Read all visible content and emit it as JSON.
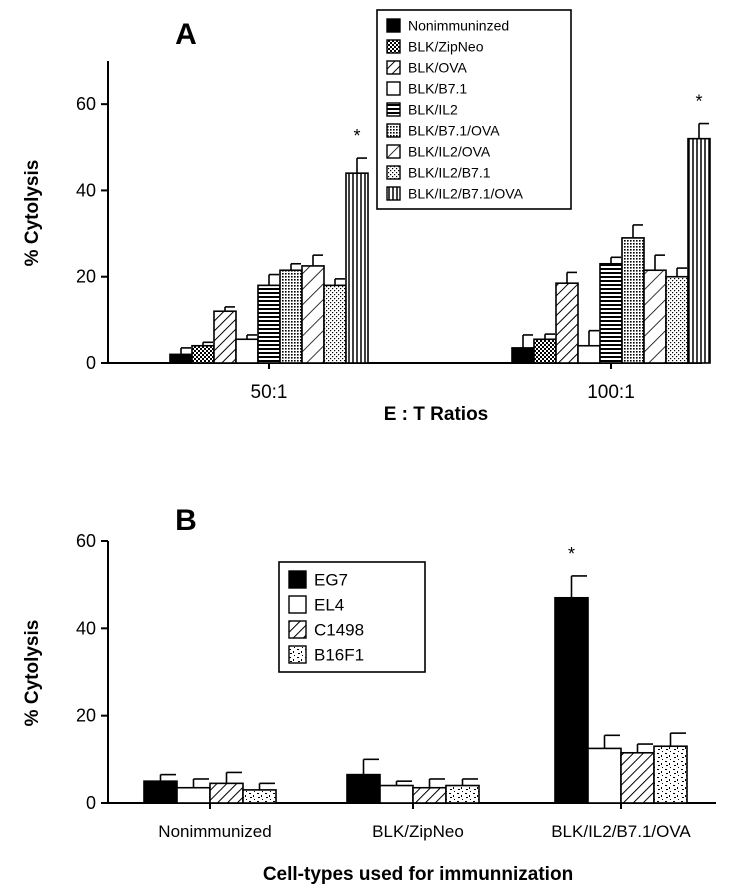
{
  "colors": {
    "ink": "#000000",
    "paper": "#ffffff"
  },
  "chart_data": [
    {
      "panel": "A",
      "type": "bar",
      "title": "A",
      "xlabel": "E : T Ratios",
      "ylabel": "% Cytolysis",
      "ylim": [
        0,
        70
      ],
      "yticks": [
        "0",
        "20",
        "40",
        "60"
      ],
      "ytick_values": [
        0,
        20,
        40,
        60
      ],
      "categories": [
        "50:1",
        "100:1"
      ],
      "legend_position": "top-right",
      "series": [
        {
          "name": "Nonimmuninzed",
          "pattern": "solid",
          "values": [
            2,
            3.5
          ],
          "errors": [
            1.5,
            3
          ]
        },
        {
          "name": "BLK/ZipNeo",
          "pattern": "crosshatch",
          "values": [
            4,
            5.5
          ],
          "errors": [
            0.8,
            1.2
          ]
        },
        {
          "name": "BLK/OVA",
          "pattern": "diagonal",
          "values": [
            12,
            18.5
          ],
          "errors": [
            1,
            2.5
          ]
        },
        {
          "name": "BLK/B7.1",
          "pattern": "empty",
          "values": [
            5.5,
            4
          ],
          "errors": [
            1,
            3.5
          ]
        },
        {
          "name": "BLK/IL2",
          "pattern": "horizontal",
          "values": [
            18,
            23
          ],
          "errors": [
            2.5,
            1.5
          ]
        },
        {
          "name": "BLK/B7.1/OVA",
          "pattern": "dense-dots",
          "values": [
            21.5,
            29
          ],
          "errors": [
            1.5,
            3
          ]
        },
        {
          "name": "BLK/IL2/OVA",
          "pattern": "wide-diagonal",
          "values": [
            22.5,
            21.5
          ],
          "errors": [
            2.5,
            3.5
          ]
        },
        {
          "name": "BLK/IL2/B7.1",
          "pattern": "light-dots",
          "values": [
            18,
            20
          ],
          "errors": [
            1.5,
            2
          ]
        },
        {
          "name": "BLK/IL2/B7.1/OVA",
          "pattern": "vertical",
          "values": [
            44,
            52
          ],
          "errors": [
            3.5,
            3.5
          ]
        }
      ],
      "annotations": [
        {
          "text": "*",
          "category": "50:1",
          "series": "BLK/IL2/B7.1/OVA"
        },
        {
          "text": "*",
          "category": "100:1",
          "series": "BLK/IL2/B7.1/OVA"
        }
      ]
    },
    {
      "panel": "B",
      "type": "bar",
      "title": "B",
      "xlabel": "Cell-types used for immunnization",
      "ylabel": "% Cytolysis",
      "ylim": [
        0,
        60
      ],
      "yticks": [
        "0",
        "20",
        "40",
        "60"
      ],
      "ytick_values": [
        0,
        20,
        40,
        60
      ],
      "categories": [
        "Nonimmunized",
        "BLK/ZipNeo",
        "BLK/IL2/B7.1/OVA"
      ],
      "legend_position": "top-center",
      "series": [
        {
          "name": "EG7",
          "pattern": "solid",
          "values": [
            5,
            6.5,
            47
          ],
          "errors": [
            1.5,
            3.5,
            5
          ]
        },
        {
          "name": "EL4",
          "pattern": "empty",
          "values": [
            3.5,
            4,
            12.5
          ],
          "errors": [
            2,
            1,
            3
          ]
        },
        {
          "name": "C1498",
          "pattern": "diagonal",
          "values": [
            4.5,
            3.5,
            11.5
          ],
          "errors": [
            2.5,
            2,
            2
          ]
        },
        {
          "name": "B16F1",
          "pattern": "speckle",
          "values": [
            3,
            4,
            13
          ],
          "errors": [
            1.5,
            1.5,
            3
          ]
        }
      ],
      "annotations": [
        {
          "text": "*",
          "category": "BLK/IL2/B7.1/OVA",
          "series": "EG7"
        }
      ]
    }
  ]
}
